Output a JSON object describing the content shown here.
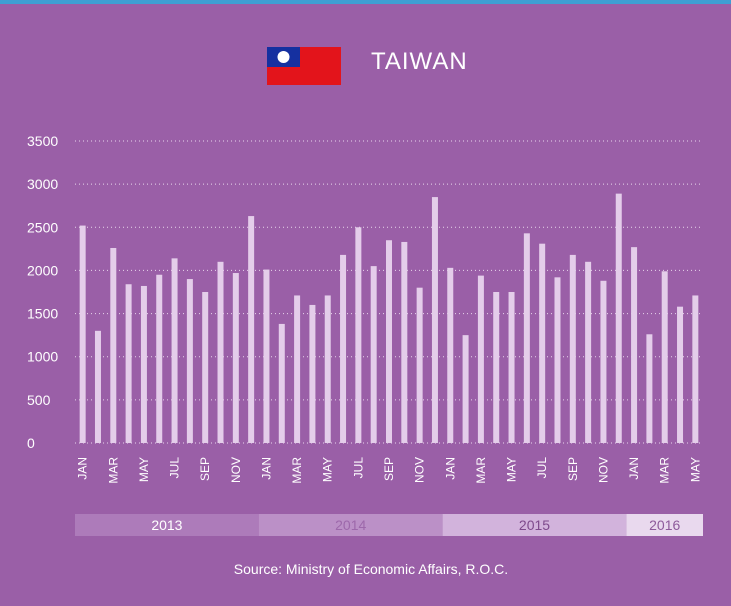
{
  "chart_data": {
    "type": "bar",
    "title": "TAIWAN",
    "source": "Source:  Ministry of Economic Affairs, R.O.C.",
    "categories": [
      "JAN",
      null,
      "MAR",
      null,
      "MAY",
      null,
      "JUL",
      null,
      "SEP",
      null,
      "NOV",
      null,
      "JAN",
      null,
      "MAR",
      null,
      "MAY",
      null,
      "JUL",
      null,
      "SEP",
      null,
      "NOV",
      null,
      "JAN",
      null,
      "MAR",
      null,
      "MAY",
      null,
      "JUL",
      null,
      "SEP",
      null,
      "NOV",
      null,
      "JAN",
      null,
      "MAR",
      null,
      "MAY"
    ],
    "values": [
      2520,
      1300,
      2260,
      1840,
      1820,
      1950,
      2140,
      1900,
      1750,
      2100,
      1970,
      2630,
      2010,
      1380,
      1710,
      1600,
      1710,
      2180,
      2500,
      2050,
      2350,
      2330,
      1800,
      2850,
      2030,
      1250,
      1940,
      1750,
      1750,
      2430,
      2310,
      1920,
      2180,
      2100,
      1880,
      2890,
      2270,
      1260,
      1990,
      1580,
      1710
    ],
    "color": "#e4cdea",
    "years": [
      {
        "label": "2013",
        "color": "#ad7bba",
        "text_color": "#ffffff"
      },
      {
        "label": "2014",
        "color": "#bb90c7",
        "text_color": "#9d68ab"
      },
      {
        "label": "2015",
        "color": "#d2b3dc",
        "text_color": "#7e4a8c"
      },
      {
        "label": "2016",
        "color": "#e9d9ee",
        "text_color": "#8d5a9b"
      }
    ],
    "ylim": [
      0,
      3500
    ],
    "yticks": [
      0,
      500,
      1000,
      1500,
      2000,
      2500,
      3000,
      3500
    ],
    "grid": true
  }
}
